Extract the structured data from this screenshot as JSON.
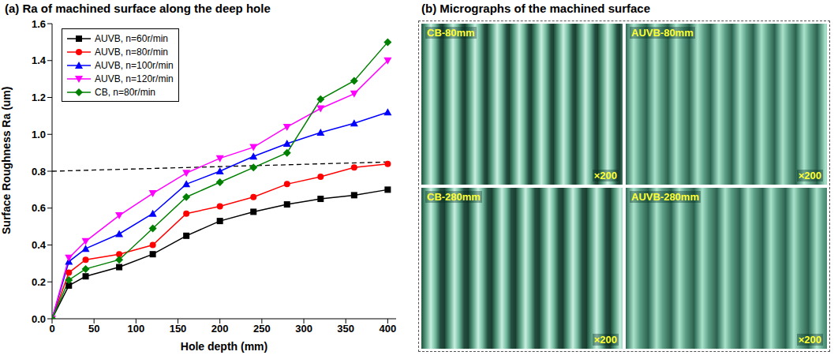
{
  "chart_data": {
    "type": "line",
    "title": "(a) Ra of machined surface along the deep hole",
    "x_label": "Hole depth (mm)",
    "y_label": "Surface Roughness Ra (um)",
    "x": [
      0,
      20,
      40,
      80,
      120,
      160,
      200,
      240,
      280,
      320,
      360,
      400
    ],
    "series": [
      {
        "name": "AUVB, n=60r/min",
        "color": "#000000",
        "marker": "square",
        "values": [
          0,
          0.18,
          0.23,
          0.28,
          0.35,
          0.45,
          0.53,
          0.58,
          0.62,
          0.65,
          0.67,
          0.7
        ]
      },
      {
        "name": "AUVB, n=80r/min",
        "color": "#ff0000",
        "marker": "circle",
        "values": [
          0,
          0.25,
          0.32,
          0.35,
          0.4,
          0.57,
          0.61,
          0.66,
          0.73,
          0.77,
          0.82,
          0.84
        ]
      },
      {
        "name": "AUVB, n=100r/min",
        "color": "#0000ff",
        "marker": "triangle",
        "values": [
          0,
          0.31,
          0.38,
          0.46,
          0.57,
          0.73,
          0.8,
          0.88,
          0.95,
          1.01,
          1.06,
          1.12
        ]
      },
      {
        "name": "AUVB, n=120r/min",
        "color": "#ff00ff",
        "marker": "triangle_down",
        "values": [
          0,
          0.33,
          0.42,
          0.56,
          0.68,
          0.79,
          0.87,
          0.93,
          1.04,
          1.14,
          1.22,
          1.4
        ]
      },
      {
        "name": "CB, n=80r/min",
        "color": "#008000",
        "marker": "diamond",
        "values": [
          0,
          0.21,
          0.27,
          0.32,
          0.49,
          0.66,
          0.74,
          0.82,
          0.9,
          1.19,
          1.29,
          1.5
        ]
      }
    ],
    "xlim": [
      0,
      410
    ],
    "xticks": [
      0,
      50,
      100,
      150,
      200,
      250,
      300,
      350,
      400
    ],
    "ylim": [
      0,
      1.6
    ],
    "yticks": [
      {
        "value": 0,
        "label": "0.0"
      },
      0.2,
      0.4,
      0.6,
      0.8,
      {
        "value": 1,
        "label": "1.0"
      },
      1.2,
      1.4,
      1.6
    ],
    "legend": "upper left",
    "reference_line": {
      "x": [
        0,
        400
      ],
      "y": [
        0.8,
        0.85
      ],
      "line_style": "dashed"
    }
  },
  "micrographs": {
    "title": "(b) Micrographs of the machined surface",
    "panels": [
      {
        "label": "CB-80mm",
        "magnification": "×200"
      },
      {
        "label": "AUVB-80mm",
        "magnification": "×200"
      },
      {
        "label": "CB-280mm",
        "magnification": "×200"
      },
      {
        "label": "AUVB-280mm",
        "magnification": "×200"
      }
    ]
  }
}
